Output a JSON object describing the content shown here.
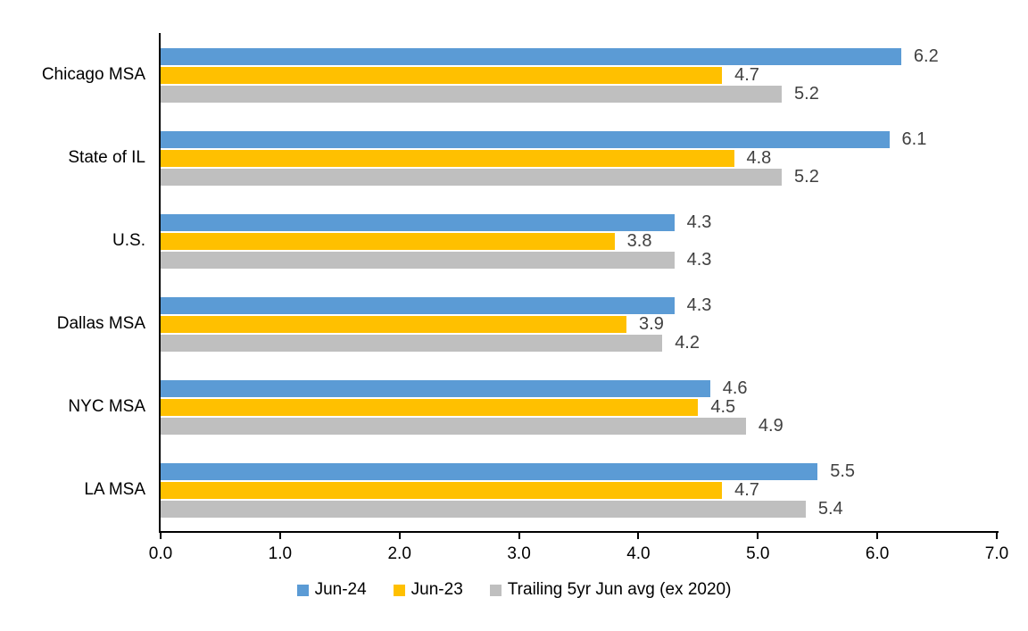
{
  "chart_data": {
    "type": "bar",
    "orientation": "horizontal",
    "title": "",
    "xlabel": "",
    "ylabel": "",
    "categories": [
      "Chicago MSA",
      "State of IL",
      "U.S.",
      "Dallas MSA",
      "NYC MSA",
      "LA MSA"
    ],
    "series": [
      {
        "name": "Jun-24",
        "color": "#5B9BD5",
        "values": [
          6.2,
          6.1,
          4.3,
          4.3,
          4.6,
          5.5
        ]
      },
      {
        "name": "Jun-23",
        "color": "#FFC000",
        "values": [
          4.7,
          4.8,
          3.8,
          3.9,
          4.5,
          4.7
        ]
      },
      {
        "name": "Trailing 5yr Jun avg (ex 2020)",
        "color": "#BFBFBF",
        "values": [
          5.2,
          5.2,
          4.3,
          4.2,
          4.9,
          5.4
        ]
      }
    ],
    "xlim": [
      0.0,
      7.0
    ],
    "x_ticks": [
      "0.0",
      "1.0",
      "2.0",
      "3.0",
      "4.0",
      "5.0",
      "6.0",
      "7.0"
    ],
    "data_labels": true,
    "data_label_color": "#404040",
    "axis_color": "#000000",
    "text_color": "#000000",
    "background_color": "#FFFFFF",
    "grid": false,
    "legend_position": "bottom"
  }
}
